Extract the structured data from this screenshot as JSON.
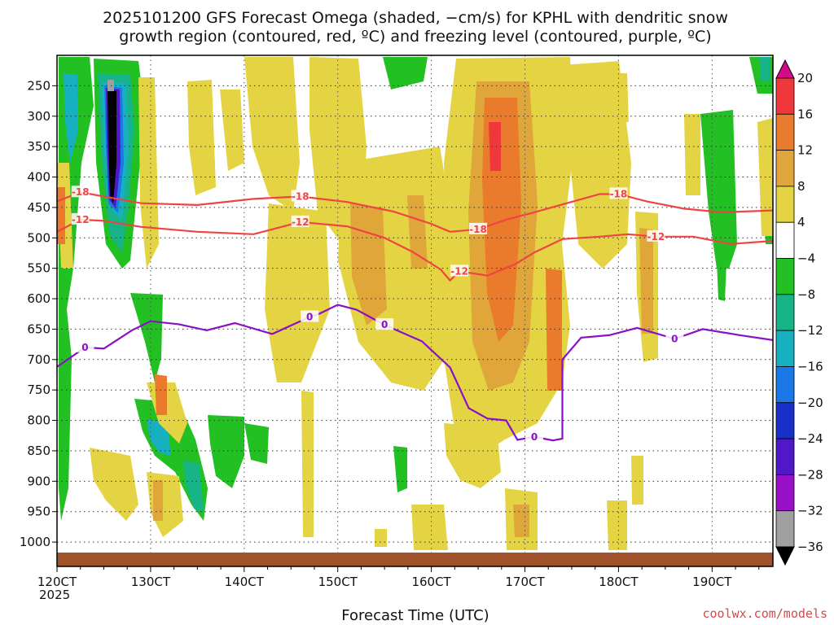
{
  "chart_data": {
    "type": "heatmap",
    "title_line1": "2025101200 GFS Forecast Omega (shaded, −cm/s) for KPHL with dendritic snow",
    "title_line2": "growth region (contoured, red, ºC) and freezing level (contoured, purple, ºC)",
    "xlabel": "Forecast Time (UTC)",
    "x_year": "2025",
    "credit": "coolwx.com/models",
    "x_ticks": [
      "120CT",
      "130CT",
      "140CT",
      "150CT",
      "160CT",
      "170CT",
      "180CT",
      "190CT"
    ],
    "x_range_days": [
      0,
      7.65
    ],
    "y_ticks": [
      250,
      300,
      350,
      400,
      450,
      500,
      550,
      600,
      650,
      700,
      750,
      800,
      850,
      900,
      950,
      1000
    ],
    "y_range_hpa": [
      200,
      1040
    ],
    "colorbar": {
      "labels": [
        "20",
        "16",
        "12",
        "8",
        "4",
        "−4",
        "−8",
        "−12",
        "−16",
        "−20",
        "−24",
        "−28",
        "−32",
        "−36"
      ],
      "colors": [
        "#d40a8a",
        "#f0383c",
        "#ea7a2c",
        "#e0a63a",
        "#e4d444",
        "#ffffff",
        "#22c022",
        "#16b486",
        "#16b0c0",
        "#1a78e8",
        "#1830c8",
        "#5018c8",
        "#9a10c8",
        "#a0a0a0",
        "#000000"
      ]
    },
    "contours": {
      "dgz_color": "#ee4444",
      "freezing_color": "#8a10c8",
      "minus18_label": "-18",
      "minus12_label": "-12",
      "zero_label": "0",
      "minus18": [
        [
          0,
          440
        ],
        [
          0.25,
          425
        ],
        [
          0.5,
          432
        ],
        [
          0.9,
          443
        ],
        [
          1.5,
          446
        ],
        [
          2.1,
          436
        ],
        [
          2.6,
          432
        ],
        [
          3.1,
          441
        ],
        [
          3.6,
          457
        ],
        [
          4.0,
          477
        ],
        [
          4.2,
          490
        ],
        [
          4.5,
          486
        ],
        [
          4.8,
          470
        ],
        [
          5.1,
          458
        ],
        [
          5.4,
          445
        ],
        [
          5.8,
          428
        ],
        [
          6.0,
          428
        ],
        [
          6.3,
          440
        ],
        [
          6.7,
          452
        ],
        [
          7.1,
          458
        ],
        [
          7.65,
          455
        ]
      ],
      "minus12": [
        [
          0,
          490
        ],
        [
          0.25,
          470
        ],
        [
          0.5,
          472
        ],
        [
          0.9,
          482
        ],
        [
          1.5,
          490
        ],
        [
          2.1,
          494
        ],
        [
          2.6,
          474
        ],
        [
          3.1,
          481
        ],
        [
          3.5,
          500
        ],
        [
          3.8,
          523
        ],
        [
          4.1,
          552
        ],
        [
          4.2,
          570
        ],
        [
          4.3,
          555
        ],
        [
          4.6,
          562
        ],
        [
          4.9,
          543
        ],
        [
          5.1,
          524
        ],
        [
          5.4,
          502
        ],
        [
          5.8,
          498
        ],
        [
          6.1,
          494
        ],
        [
          6.4,
          498
        ],
        [
          6.8,
          498
        ],
        [
          7.2,
          510
        ],
        [
          7.65,
          505
        ]
      ],
      "freezing": [
        [
          0,
          712
        ],
        [
          0.3,
          680
        ],
        [
          0.5,
          682
        ],
        [
          0.8,
          652
        ],
        [
          1.0,
          637
        ],
        [
          1.3,
          642
        ],
        [
          1.6,
          652
        ],
        [
          1.9,
          640
        ],
        [
          2.3,
          658
        ],
        [
          2.7,
          630
        ],
        [
          2.8,
          625
        ],
        [
          3.0,
          610
        ],
        [
          3.2,
          618
        ],
        [
          3.5,
          643
        ],
        [
          3.9,
          670
        ],
        [
          4.2,
          713
        ],
        [
          4.4,
          780
        ],
        [
          4.6,
          797
        ],
        [
          4.8,
          800
        ],
        [
          4.92,
          832
        ],
        [
          5.1,
          827
        ],
        [
          5.3,
          833
        ],
        [
          5.4,
          830
        ],
        [
          5.4,
          745
        ],
        [
          5.4,
          700
        ],
        [
          5.6,
          664
        ],
        [
          5.9,
          660
        ],
        [
          6.2,
          648
        ],
        [
          6.6,
          666
        ],
        [
          6.9,
          650
        ],
        [
          7.3,
          660
        ],
        [
          7.65,
          668
        ]
      ]
    }
  }
}
